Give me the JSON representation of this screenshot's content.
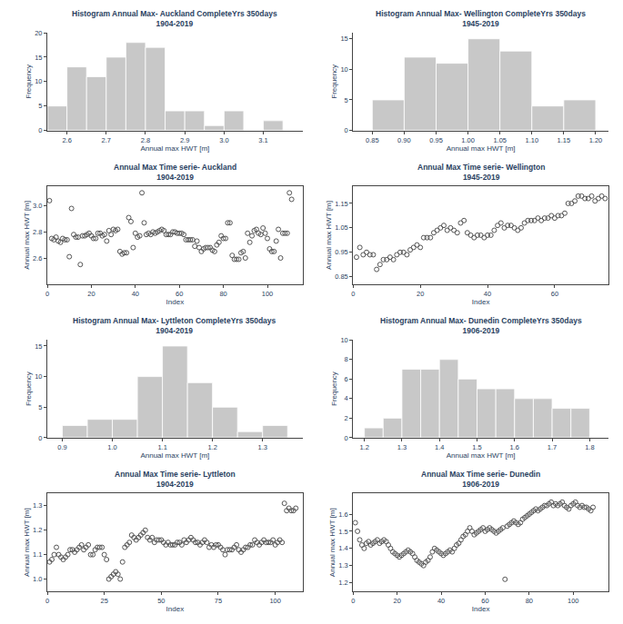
{
  "chart_data": [
    {
      "type": "histogram",
      "title": "Histogram Annual Max- Auckland CompleteYrs 350days\n1904-2019",
      "xlabel": "Annual max HWT [m]",
      "ylabel": "Frequency",
      "bins": [
        2.55,
        2.6,
        2.65,
        2.7,
        2.75,
        2.8,
        2.85,
        2.9,
        2.95,
        3.0,
        3.05,
        3.1,
        3.15
      ],
      "values": [
        5,
        13,
        11,
        15,
        18,
        17,
        4,
        4,
        1,
        4,
        0,
        2
      ],
      "color": "#c8c8c8",
      "xlim": [
        2.55,
        3.2
      ],
      "xticks": [
        2.6,
        2.7,
        2.8,
        2.9,
        {
          "value": 3.0,
          "label": "3.0"
        },
        3.1
      ],
      "ylim": [
        0,
        20
      ],
      "yticks": [
        0,
        5,
        10,
        15,
        20
      ],
      "grid": false
    },
    {
      "type": "histogram",
      "title": "Histogram Annual Max- Wellington CompleteYrs 350days\n1945-2019",
      "xlabel": "Annual max HWT [m]",
      "ylabel": "Frequency",
      "bins": [
        0.85,
        0.9,
        0.95,
        1.0,
        1.05,
        1.1,
        1.15,
        1.2
      ],
      "values": [
        5,
        12,
        11,
        15,
        13,
        4,
        5
      ],
      "color": "#c8c8c8",
      "xlim": [
        0.82,
        1.22
      ],
      "xticks": [
        0.85,
        {
          "value": 0.9,
          "label": "0.90"
        },
        0.95,
        {
          "value": 1.0,
          "label": "1.00"
        },
        1.05,
        {
          "value": 1.1,
          "label": "1.10"
        },
        1.15,
        {
          "value": 1.2,
          "label": "1.20"
        }
      ],
      "ylim": [
        0,
        16
      ],
      "yticks": [
        0,
        5,
        10,
        15
      ],
      "grid": false
    },
    {
      "type": "scatter",
      "title": "Annual Max Time serie- Auckland\n1904-2019",
      "xlabel": "Index",
      "ylabel": "Annual max HWT [m]",
      "x": [
        1,
        2,
        3,
        4,
        5,
        6,
        7,
        8,
        9,
        10,
        11,
        12,
        13,
        14,
        15,
        16,
        17,
        18,
        19,
        20,
        21,
        22,
        23,
        24,
        25,
        26,
        27,
        28,
        29,
        30,
        31,
        32,
        33,
        34,
        35,
        36,
        37,
        38,
        39,
        40,
        41,
        42,
        43,
        44,
        45,
        46,
        47,
        48,
        49,
        50,
        51,
        52,
        53,
        54,
        55,
        56,
        57,
        58,
        59,
        60,
        61,
        62,
        63,
        64,
        65,
        66,
        67,
        68,
        69,
        70,
        71,
        72,
        73,
        74,
        75,
        76,
        77,
        78,
        79,
        80,
        81,
        82,
        83,
        84,
        85,
        86,
        87,
        88,
        89,
        90,
        91,
        92,
        93,
        94,
        95,
        96,
        97,
        98,
        99,
        100,
        101,
        102,
        103,
        104,
        105,
        106,
        107,
        108,
        109,
        110,
        111
      ],
      "values": [
        3.04,
        2.75,
        2.74,
        2.76,
        2.73,
        2.72,
        2.75,
        2.74,
        2.74,
        2.61,
        2.98,
        2.78,
        2.76,
        2.76,
        2.55,
        2.77,
        2.77,
        2.78,
        2.79,
        2.77,
        2.75,
        2.75,
        2.79,
        2.79,
        2.77,
        2.78,
        2.73,
        2.81,
        2.78,
        2.82,
        2.81,
        2.82,
        2.65,
        2.63,
        2.64,
        2.64,
        2.91,
        2.88,
        2.68,
        2.79,
        2.76,
        2.77,
        3.1,
        2.87,
        2.78,
        2.79,
        2.78,
        2.8,
        2.79,
        2.8,
        2.81,
        2.82,
        2.81,
        2.78,
        2.78,
        2.78,
        2.8,
        2.8,
        2.79,
        2.79,
        2.79,
        2.78,
        2.74,
        2.74,
        2.74,
        2.74,
        2.69,
        2.73,
        2.68,
        2.65,
        2.67,
        2.68,
        2.68,
        2.68,
        2.66,
        2.65,
        2.7,
        2.72,
        2.77,
        2.75,
        2.75,
        2.87,
        2.87,
        2.62,
        2.59,
        2.59,
        2.59,
        2.64,
        2.65,
        2.6,
        2.79,
        2.72,
        2.77,
        2.81,
        2.82,
        2.79,
        2.78,
        2.83,
        2.79,
        2.75,
        2.67,
        2.65,
        2.65,
        2.73,
        2.82,
        2.6,
        2.79,
        2.79,
        2.79,
        3.1,
        3.05
      ],
      "color": "#555555",
      "marker": "circle-open",
      "xlim": [
        0,
        116
      ],
      "xticks": [
        0,
        20,
        40,
        60,
        80,
        100
      ],
      "ylim": [
        2.4,
        3.15
      ],
      "yticks": [
        2.6,
        2.8,
        {
          "value": 3.0,
          "label": "3.0"
        }
      ],
      "grid": false
    },
    {
      "type": "scatter",
      "title": "Annual Max Time serie- Wellington\n1945-2019",
      "xlabel": "Index",
      "ylabel": "Annual max HWT [m]",
      "x": [
        1,
        2,
        3,
        4,
        5,
        6,
        7,
        8,
        9,
        10,
        11,
        12,
        13,
        14,
        15,
        16,
        17,
        18,
        19,
        20,
        21,
        22,
        23,
        24,
        25,
        26,
        27,
        28,
        29,
        30,
        31,
        32,
        33,
        34,
        35,
        36,
        37,
        38,
        39,
        40,
        41,
        42,
        43,
        44,
        45,
        46,
        47,
        48,
        49,
        50,
        51,
        52,
        53,
        54,
        55,
        56,
        57,
        58,
        59,
        60,
        61,
        62,
        63,
        64,
        65,
        66,
        67,
        68,
        69,
        70,
        71,
        72,
        73,
        74,
        75
      ],
      "values": [
        0.93,
        0.97,
        0.94,
        0.95,
        0.94,
        0.94,
        0.88,
        0.9,
        0.92,
        0.92,
        0.93,
        0.92,
        0.94,
        0.95,
        0.95,
        0.94,
        0.96,
        0.97,
        0.98,
        0.97,
        1.01,
        1.01,
        1.01,
        1.03,
        1.04,
        1.05,
        1.06,
        1.04,
        1.05,
        1.04,
        1.03,
        1.07,
        1.08,
        1.03,
        1.02,
        1.01,
        1.02,
        1.02,
        1.01,
        1.02,
        1.02,
        1.04,
        1.06,
        1.07,
        1.05,
        1.06,
        1.06,
        1.05,
        1.04,
        1.05,
        1.07,
        1.08,
        1.08,
        1.08,
        1.09,
        1.08,
        1.09,
        1.09,
        1.1,
        1.09,
        1.1,
        1.1,
        1.11,
        1.15,
        1.15,
        1.16,
        1.18,
        1.18,
        1.17,
        1.17,
        1.18,
        1.16,
        1.17,
        1.18,
        1.17
      ],
      "color": "#555555",
      "marker": "circle-open",
      "xlim": [
        0,
        76
      ],
      "xticks": [
        0,
        20,
        40,
        60
      ],
      "ylim": [
        0.82,
        1.22
      ],
      "yticks": [
        0.85,
        0.95,
        1.05,
        1.15
      ],
      "grid": false
    },
    {
      "type": "histogram",
      "title": "Histogram Annual Max- Lyttleton CompleteYrs 350days\n1904-2019",
      "xlabel": "Annual max HWT [m]",
      "ylabel": "Frequency",
      "bins": [
        0.9,
        0.95,
        1.0,
        1.05,
        1.1,
        1.15,
        1.2,
        1.25,
        1.3,
        1.35
      ],
      "values": [
        2,
        3,
        3,
        10,
        15,
        9,
        5,
        1,
        2
      ],
      "color": "#c8c8c8",
      "xlim": [
        0.87,
        1.38
      ],
      "xticks": [
        0.9,
        {
          "value": 1.0,
          "label": "1.0"
        },
        1.1,
        1.2,
        1.3
      ],
      "ylim": [
        0,
        16
      ],
      "yticks": [
        0,
        5,
        10,
        15
      ],
      "grid": false
    },
    {
      "type": "histogram",
      "title": "Histogram Annual Max- Dunedin CompleteYrs 350days\n1906-2019",
      "xlabel": "Annual max HWT [m]",
      "ylabel": "Frequency",
      "bins": [
        1.2,
        1.25,
        1.3,
        1.35,
        1.4,
        1.45,
        1.5,
        1.55,
        1.6,
        1.65,
        1.7,
        1.75,
        1.8
      ],
      "values": [
        1,
        2,
        7,
        7,
        8,
        6,
        5,
        5,
        4,
        4,
        3,
        3
      ],
      "color": "#c8c8c8",
      "xlim": [
        1.17,
        1.85
      ],
      "xticks": [
        1.2,
        1.3,
        1.4,
        1.5,
        1.6,
        1.7,
        1.8
      ],
      "ylim": [
        0,
        10
      ],
      "yticks": [
        0,
        2,
        4,
        6,
        8,
        10
      ],
      "grid": false
    },
    {
      "type": "scatter",
      "title": "Annual Max Time serie- Lyttleton\n1904-2019",
      "xlabel": "Index",
      "ylabel": "Annual max HWT [m]",
      "x": [
        1,
        2,
        3,
        4,
        5,
        6,
        7,
        8,
        9,
        10,
        11,
        12,
        13,
        14,
        15,
        16,
        17,
        18,
        19,
        20,
        21,
        22,
        23,
        24,
        25,
        26,
        27,
        28,
        29,
        30,
        31,
        32,
        33,
        34,
        35,
        36,
        37,
        38,
        39,
        40,
        41,
        42,
        43,
        44,
        45,
        46,
        47,
        48,
        49,
        50,
        51,
        52,
        53,
        54,
        55,
        56,
        57,
        58,
        59,
        60,
        61,
        62,
        63,
        64,
        65,
        66,
        67,
        68,
        69,
        70,
        71,
        72,
        73,
        74,
        75,
        76,
        77,
        78,
        79,
        80,
        81,
        82,
        83,
        84,
        85,
        86,
        87,
        88,
        89,
        90,
        91,
        92,
        93,
        94,
        95,
        96,
        97,
        98,
        99,
        100,
        101,
        102,
        103,
        104,
        105,
        106,
        107,
        108,
        109
      ],
      "values": [
        1.07,
        1.08,
        1.1,
        1.13,
        1.1,
        1.09,
        1.08,
        1.09,
        1.1,
        1.12,
        1.12,
        1.11,
        1.12,
        1.13,
        1.14,
        1.12,
        1.13,
        1.14,
        1.1,
        1.1,
        1.12,
        1.13,
        1.13,
        1.13,
        1.1,
        1.08,
        1.0,
        1.01,
        1.02,
        1.03,
        1.02,
        1.0,
        1.07,
        1.13,
        1.14,
        1.15,
        1.18,
        1.17,
        1.16,
        1.17,
        1.18,
        1.19,
        1.2,
        1.17,
        1.16,
        1.17,
        1.15,
        1.16,
        1.16,
        1.16,
        1.15,
        1.14,
        1.15,
        1.14,
        1.14,
        1.14,
        1.15,
        1.15,
        1.14,
        1.16,
        1.15,
        1.16,
        1.17,
        1.16,
        1.15,
        1.15,
        1.14,
        1.15,
        1.16,
        1.15,
        1.13,
        1.14,
        1.13,
        1.14,
        1.14,
        1.13,
        1.12,
        1.1,
        1.12,
        1.12,
        1.12,
        1.13,
        1.14,
        1.12,
        1.11,
        1.12,
        1.13,
        1.13,
        1.14,
        1.14,
        1.16,
        1.15,
        1.14,
        1.15,
        1.16,
        1.15,
        1.15,
        1.15,
        1.16,
        1.14,
        1.15,
        1.16,
        1.15,
        1.31,
        1.28,
        1.29,
        1.28,
        1.28,
        1.29
      ],
      "color": "#555555",
      "marker": "circle-open",
      "xlim": [
        0,
        112
      ],
      "xticks": [
        0,
        25,
        50,
        75,
        100
      ],
      "ylim": [
        0.95,
        1.35
      ],
      "yticks": [
        {
          "value": 1.0,
          "label": "1.0"
        },
        1.1,
        1.2,
        1.3
      ],
      "grid": false
    },
    {
      "type": "scatter",
      "title": "Annual Max Time serie- Dunedin\n1906-2019",
      "xlabel": "Index",
      "ylabel": "Annual max HWT [m]",
      "x": [
        1,
        2,
        3,
        4,
        5,
        6,
        7,
        8,
        9,
        10,
        11,
        12,
        13,
        14,
        15,
        16,
        17,
        18,
        19,
        20,
        21,
        22,
        23,
        24,
        25,
        26,
        27,
        28,
        29,
        30,
        31,
        32,
        33,
        34,
        35,
        36,
        37,
        38,
        39,
        40,
        41,
        42,
        43,
        44,
        45,
        46,
        47,
        48,
        49,
        50,
        51,
        52,
        53,
        54,
        55,
        56,
        57,
        58,
        59,
        60,
        61,
        62,
        63,
        64,
        65,
        66,
        67,
        68,
        69,
        70,
        71,
        72,
        73,
        74,
        75,
        76,
        77,
        78,
        79,
        80,
        81,
        82,
        83,
        84,
        85,
        86,
        87,
        88,
        89,
        90,
        91,
        92,
        93,
        94,
        95,
        96,
        97,
        98,
        99,
        100,
        101,
        102,
        103,
        104,
        105,
        106,
        107,
        108,
        109
      ],
      "values": [
        1.55,
        1.5,
        1.45,
        1.42,
        1.4,
        1.43,
        1.44,
        1.42,
        1.43,
        1.44,
        1.45,
        1.43,
        1.44,
        1.45,
        1.44,
        1.42,
        1.4,
        1.38,
        1.37,
        1.36,
        1.35,
        1.36,
        1.37,
        1.38,
        1.39,
        1.38,
        1.37,
        1.35,
        1.33,
        1.32,
        1.31,
        1.3,
        1.32,
        1.33,
        1.35,
        1.38,
        1.4,
        1.39,
        1.38,
        1.37,
        1.36,
        1.37,
        1.38,
        1.39,
        1.38,
        1.4,
        1.42,
        1.43,
        1.45,
        1.47,
        1.48,
        1.5,
        1.52,
        1.5,
        1.48,
        1.49,
        1.5,
        1.51,
        1.52,
        1.5,
        1.51,
        1.52,
        1.51,
        1.5,
        1.49,
        1.5,
        1.51,
        1.52,
        1.22,
        1.53,
        1.54,
        1.55,
        1.56,
        1.55,
        1.54,
        1.55,
        1.57,
        1.58,
        1.59,
        1.6,
        1.61,
        1.62,
        1.63,
        1.62,
        1.63,
        1.64,
        1.65,
        1.65,
        1.66,
        1.67,
        1.65,
        1.66,
        1.65,
        1.66,
        1.67,
        1.65,
        1.64,
        1.63,
        1.65,
        1.66,
        1.67,
        1.65,
        1.64,
        1.65,
        1.64,
        1.64,
        1.63,
        1.62,
        1.64
      ],
      "color": "#555555",
      "marker": "circle-open",
      "xlim": [
        0,
        116
      ],
      "xticks": [
        0,
        20,
        40,
        60,
        80,
        100
      ],
      "ylim": [
        1.15,
        1.72
      ],
      "yticks": [
        1.2,
        1.3,
        1.4,
        1.5,
        1.6
      ],
      "grid": false
    }
  ]
}
